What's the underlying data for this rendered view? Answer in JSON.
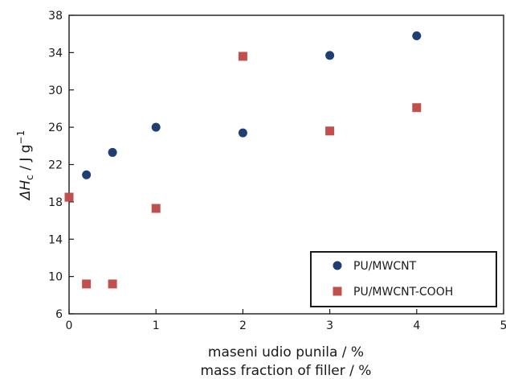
{
  "chart_data": {
    "type": "scatter",
    "xlabel_line1": "maseni udio punila / %",
    "xlabel_line2": "mass fraction of filler / %",
    "ylabel": {
      "prefix": "ΔH",
      "subscript": "c",
      "unit": " / J g",
      "superscript": "−1"
    },
    "xlim": [
      0,
      5
    ],
    "ylim": [
      6,
      38
    ],
    "x_ticks": [
      0,
      1,
      2,
      3,
      4,
      5
    ],
    "y_ticks": [
      6,
      10,
      14,
      18,
      22,
      26,
      30,
      34,
      38
    ],
    "grid": false,
    "legend_position": "bottom-right",
    "series": [
      {
        "name": "PU/MWCNT",
        "marker": "circle",
        "color": "#1f3f73",
        "points": [
          {
            "x": 0,
            "y": 18.5
          },
          {
            "x": 0.2,
            "y": 20.9
          },
          {
            "x": 0.5,
            "y": 23.3
          },
          {
            "x": 1,
            "y": 26.0
          },
          {
            "x": 2,
            "y": 25.4
          },
          {
            "x": 3,
            "y": 33.7
          },
          {
            "x": 4,
            "y": 35.8
          }
        ]
      },
      {
        "name": "PU/MWCNT-COOH",
        "marker": "square",
        "color": "#c0504d",
        "points": [
          {
            "x": 0,
            "y": 18.5
          },
          {
            "x": 0.2,
            "y": 9.2
          },
          {
            "x": 0.5,
            "y": 9.2
          },
          {
            "x": 1,
            "y": 17.3
          },
          {
            "x": 2,
            "y": 33.6
          },
          {
            "x": 3,
            "y": 25.6
          },
          {
            "x": 4,
            "y": 28.1
          }
        ]
      }
    ]
  }
}
